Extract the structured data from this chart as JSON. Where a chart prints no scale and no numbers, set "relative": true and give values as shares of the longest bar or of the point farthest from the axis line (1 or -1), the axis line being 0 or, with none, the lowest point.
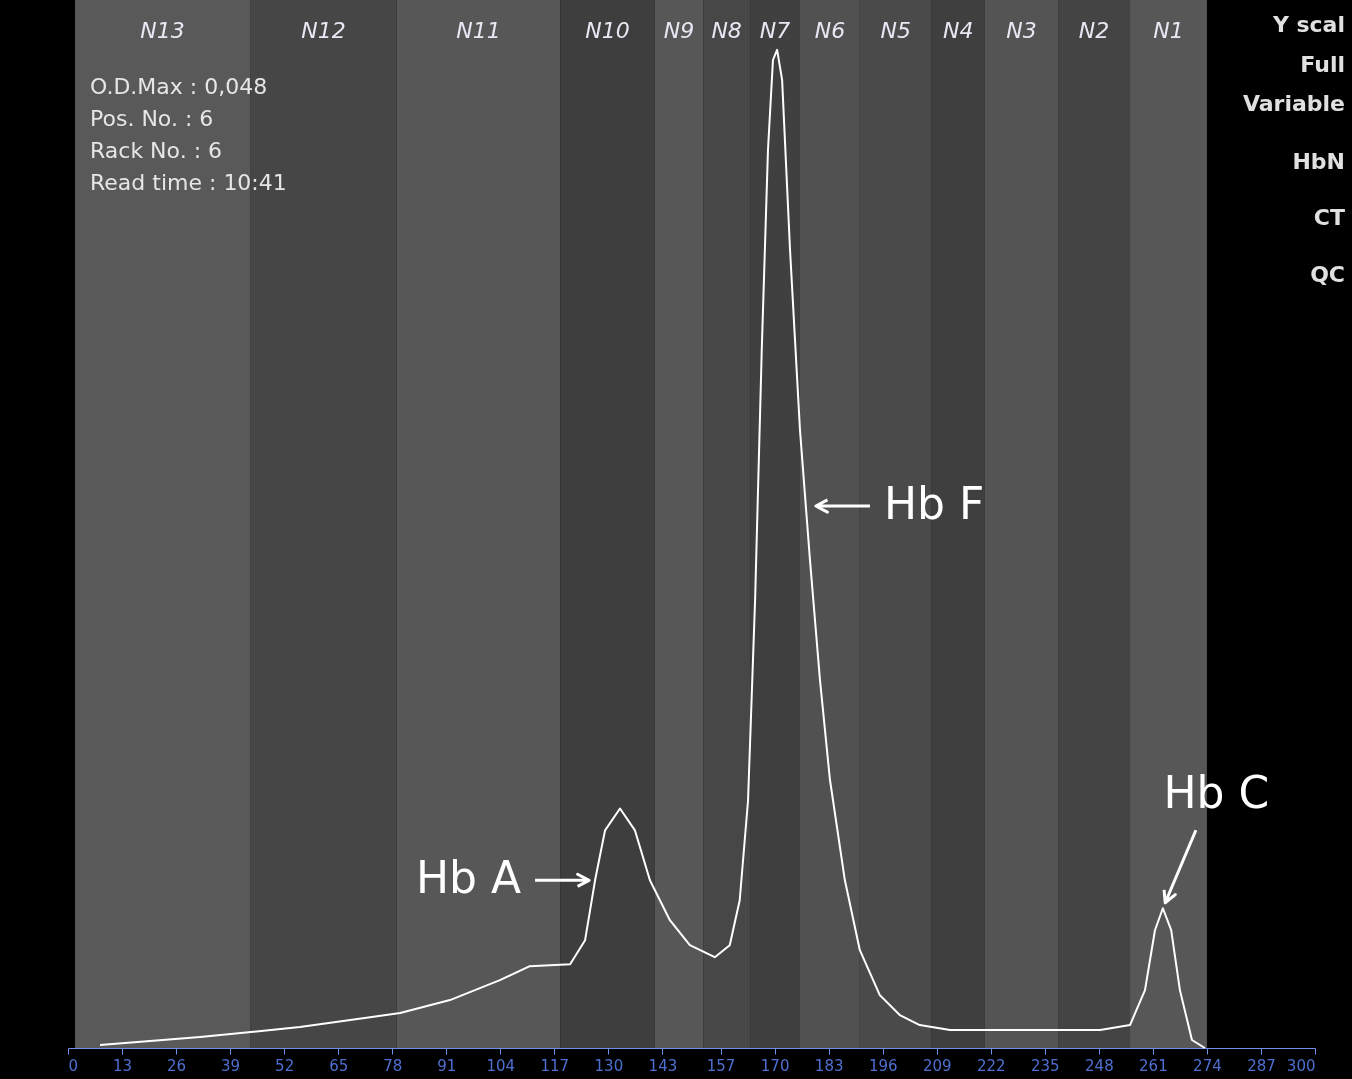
{
  "chart_data": {
    "type": "line",
    "relative": true,
    "grid": false,
    "marker": "none",
    "line_style": "solid",
    "x": [
      7.7,
      31.8,
      55.8,
      79.9,
      91.9,
      103.9,
      111.1,
      120.8,
      124.4,
      126.8,
      129.2,
      132.8,
      136.4,
      140.0,
      144.8,
      149.6,
      155.6,
      159.2,
      161.6,
      163.6,
      165.3,
      166.9,
      168.4,
      169.6,
      170.6,
      171.8,
      173.7,
      176.1,
      178.5,
      180.9,
      183.3,
      186.9,
      190.5,
      195.3,
      200.1,
      204.9,
      212.2,
      224.2,
      236.2,
      248.3,
      255.5,
      259.1,
      261.5,
      263.4,
      265.4,
      267.5,
      270.4,
      273.5
    ],
    "series": [
      {
        "color": "#ffffff",
        "values": [
          0.003,
          0.011,
          0.021,
          0.035,
          0.048,
          0.068,
          0.082,
          0.084,
          0.108,
          0.168,
          0.218,
          0.24,
          0.218,
          0.168,
          0.128,
          0.103,
          0.091,
          0.103,
          0.148,
          0.248,
          0.449,
          0.699,
          0.9,
          0.99,
          1.0,
          0.97,
          0.8,
          0.619,
          0.489,
          0.369,
          0.269,
          0.168,
          0.098,
          0.053,
          0.033,
          0.023,
          0.018,
          0.018,
          0.018,
          0.018,
          0.023,
          0.058,
          0.118,
          0.14,
          0.118,
          0.058,
          0.008,
          0.0
        ]
      }
    ],
    "xlim": [
      0,
      300
    ],
    "xticks": [
      0,
      13,
      26,
      39,
      52,
      65,
      78,
      91,
      104,
      117,
      130,
      143,
      157,
      170,
      183,
      196,
      209,
      222,
      235,
      248,
      261,
      274,
      287,
      300
    ],
    "bands": [
      {
        "axis": "x",
        "from": 1.7,
        "to": 43.8,
        "label": "N13",
        "color": "#595959"
      },
      {
        "axis": "x",
        "from": 43.8,
        "to": 79.1,
        "label": "N12",
        "color": "#464646"
      },
      {
        "axis": "x",
        "from": 79.1,
        "to": 118.4,
        "label": "N11",
        "color": "#575757"
      },
      {
        "axis": "x",
        "from": 118.4,
        "to": 141.2,
        "label": "N10",
        "color": "#3e3e3e"
      },
      {
        "axis": "x",
        "from": 141.2,
        "to": 152.8,
        "label": "N9",
        "color": "#575757"
      },
      {
        "axis": "x",
        "from": 152.8,
        "to": 164.1,
        "label": "N8",
        "color": "#474747"
      },
      {
        "axis": "x",
        "from": 164.1,
        "to": 176.1,
        "label": "N7",
        "color": "#404040"
      },
      {
        "axis": "x",
        "from": 176.1,
        "to": 190.5,
        "label": "N6",
        "color": "#515151"
      },
      {
        "axis": "x",
        "from": 190.5,
        "to": 207.8,
        "label": "N5",
        "color": "#4a4a4a"
      },
      {
        "axis": "x",
        "from": 207.8,
        "to": 220.6,
        "label": "N4",
        "color": "#3f3f3f"
      },
      {
        "axis": "x",
        "from": 220.6,
        "to": 238.2,
        "label": "N3",
        "color": "#545454"
      },
      {
        "axis": "x",
        "from": 238.2,
        "to": 255.5,
        "label": "N2",
        "color": "#444444"
      },
      {
        "axis": "x",
        "from": 255.5,
        "to": 274.0,
        "label": "N1",
        "color": "#575757"
      }
    ],
    "annotations": [
      "O.D.Max : 0,048",
      "Pos. No.   : 6",
      "Rack No.  : 6",
      "Read time : 10:41",
      "Y scal",
      "Full",
      "Variable",
      "HbN",
      "CT",
      "QC",
      {
        "text": "Hb A",
        "x": 126.8,
        "y": 0.168
      },
      {
        "text": "Hb F",
        "x": 178.5,
        "y": 0.543
      },
      {
        "text": "Hb C",
        "x": 263.4,
        "y": 0.14
      }
    ]
  }
}
